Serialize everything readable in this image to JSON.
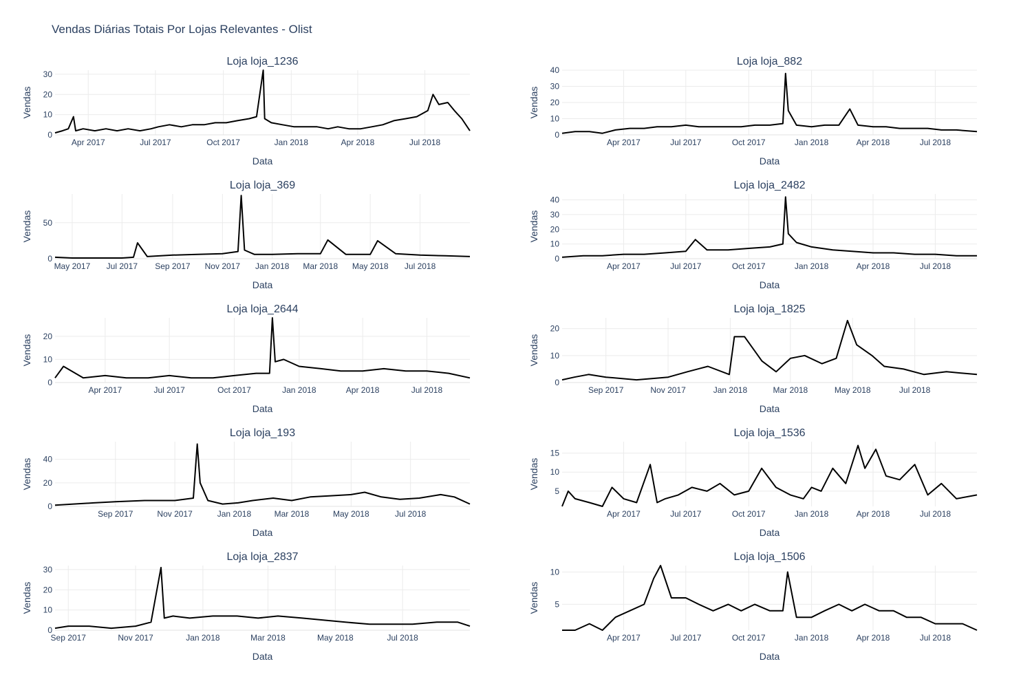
{
  "title": "Vendas Diárias Totais Por Lojas Relevantes - Olist",
  "colors": {
    "line": "#000000",
    "grid": "#ebebeb",
    "text": "#2a3f5f"
  },
  "chart_data": [
    {
      "type": "line",
      "title": "Loja loja_1236",
      "xlabel": "Data",
      "ylabel": "Vendas",
      "xlim": [
        "2017-02-15",
        "2018-08-31"
      ],
      "ylim": [
        0,
        32
      ],
      "xticks": [
        "2017-04-01",
        "2017-07-01",
        "2017-10-01",
        "2018-01-01",
        "2018-04-01",
        "2018-07-01"
      ],
      "xticklabels": [
        "Apr 2017",
        "Jul 2017",
        "Oct 2017",
        "Jan 2018",
        "Apr 2018",
        "Jul 2018"
      ],
      "yticks": [
        0,
        10,
        20,
        30
      ],
      "series": [
        {
          "x": [
            "2017-02-15",
            "2017-02-25",
            "2017-03-05",
            "2017-03-12",
            "2017-03-15",
            "2017-03-25",
            "2017-04-10",
            "2017-04-25",
            "2017-05-10",
            "2017-05-25",
            "2017-06-10",
            "2017-06-25",
            "2017-07-05",
            "2017-07-20",
            "2017-08-05",
            "2017-08-20",
            "2017-09-05",
            "2017-09-20",
            "2017-10-05",
            "2017-10-20",
            "2017-11-05",
            "2017-11-15",
            "2017-11-24",
            "2017-11-26",
            "2017-12-05",
            "2017-12-20",
            "2018-01-05",
            "2018-01-20",
            "2018-02-05",
            "2018-02-20",
            "2018-03-05",
            "2018-03-20",
            "2018-04-05",
            "2018-04-20",
            "2018-05-05",
            "2018-05-20",
            "2018-06-05",
            "2018-06-20",
            "2018-07-05",
            "2018-07-12",
            "2018-07-20",
            "2018-08-01",
            "2018-08-10",
            "2018-08-20",
            "2018-08-31"
          ],
          "y": [
            1,
            2,
            3,
            9,
            2,
            3,
            2,
            3,
            2,
            3,
            2,
            3,
            4,
            5,
            4,
            5,
            5,
            6,
            6,
            7,
            8,
            9,
            32,
            8,
            6,
            5,
            4,
            4,
            4,
            3,
            4,
            3,
            3,
            4,
            5,
            7,
            8,
            9,
            12,
            20,
            15,
            16,
            12,
            8,
            2
          ]
        }
      ]
    },
    {
      "type": "line",
      "title": "Loja loja_882",
      "xlabel": "Data",
      "ylabel": "Vendas",
      "xlim": [
        "2017-01-01",
        "2018-08-31"
      ],
      "ylim": [
        0,
        40
      ],
      "xticks": [
        "2017-04-01",
        "2017-07-01",
        "2017-10-01",
        "2018-01-01",
        "2018-04-01",
        "2018-07-01"
      ],
      "xticklabels": [
        "Apr 2017",
        "Jul 2017",
        "Oct 2017",
        "Jan 2018",
        "Apr 2018",
        "Jul 2018"
      ],
      "yticks": [
        0,
        10,
        20,
        30,
        40
      ],
      "series": [
        {
          "x": [
            "2017-01-01",
            "2017-01-20",
            "2017-02-10",
            "2017-03-01",
            "2017-03-20",
            "2017-04-10",
            "2017-05-01",
            "2017-05-20",
            "2017-06-10",
            "2017-07-01",
            "2017-07-20",
            "2017-08-10",
            "2017-09-01",
            "2017-09-20",
            "2017-10-10",
            "2017-11-01",
            "2017-11-20",
            "2017-11-24",
            "2017-11-28",
            "2017-12-10",
            "2018-01-01",
            "2018-01-20",
            "2018-02-10",
            "2018-02-26",
            "2018-03-10",
            "2018-04-01",
            "2018-04-20",
            "2018-05-10",
            "2018-06-01",
            "2018-06-20",
            "2018-07-10",
            "2018-08-01",
            "2018-08-31"
          ],
          "y": [
            1,
            2,
            2,
            1,
            3,
            4,
            4,
            5,
            5,
            6,
            5,
            5,
            5,
            5,
            6,
            6,
            7,
            38,
            15,
            6,
            5,
            6,
            6,
            16,
            6,
            5,
            5,
            4,
            4,
            4,
            3,
            3,
            2
          ]
        }
      ]
    },
    {
      "type": "line",
      "title": "Loja loja_369",
      "xlabel": "Data",
      "ylabel": "Vendas",
      "xlim": [
        "2017-04-10",
        "2018-08-31"
      ],
      "ylim": [
        0,
        90
      ],
      "xticks": [
        "2017-05-01",
        "2017-07-01",
        "2017-09-01",
        "2017-11-01",
        "2018-01-01",
        "2018-03-01",
        "2018-05-01",
        "2018-07-01"
      ],
      "xticklabels": [
        "May 2017",
        "Jul 2017",
        "Sep 2017",
        "Nov 2017",
        "Jan 2018",
        "Mar 2018",
        "May 2018",
        "Jul 2018"
      ],
      "yticks": [
        0,
        50
      ],
      "series": [
        {
          "x": [
            "2017-04-10",
            "2017-05-01",
            "2017-06-01",
            "2017-07-01",
            "2017-07-15",
            "2017-07-20",
            "2017-08-01",
            "2017-09-01",
            "2017-10-01",
            "2017-11-01",
            "2017-11-20",
            "2017-11-24",
            "2017-11-28",
            "2017-12-10",
            "2018-01-01",
            "2018-02-01",
            "2018-03-01",
            "2018-03-10",
            "2018-04-01",
            "2018-05-01",
            "2018-05-10",
            "2018-06-01",
            "2018-07-01",
            "2018-08-01",
            "2018-08-31"
          ],
          "y": [
            2,
            1,
            1,
            1,
            2,
            22,
            3,
            5,
            6,
            7,
            10,
            88,
            12,
            6,
            6,
            7,
            7,
            26,
            6,
            6,
            25,
            7,
            5,
            4,
            3
          ]
        }
      ]
    },
    {
      "type": "line",
      "title": "Loja loja_2482",
      "xlabel": "Data",
      "ylabel": "Vendas",
      "xlim": [
        "2017-01-01",
        "2018-08-31"
      ],
      "ylim": [
        0,
        44
      ],
      "xticks": [
        "2017-04-01",
        "2017-07-01",
        "2017-10-01",
        "2018-01-01",
        "2018-04-01",
        "2018-07-01"
      ],
      "xticklabels": [
        "Apr 2017",
        "Jul 2017",
        "Oct 2017",
        "Jan 2018",
        "Apr 2018",
        "Jul 2018"
      ],
      "yticks": [
        0,
        10,
        20,
        30,
        40
      ],
      "series": [
        {
          "x": [
            "2017-01-01",
            "2017-02-01",
            "2017-03-01",
            "2017-04-01",
            "2017-05-01",
            "2017-06-01",
            "2017-07-01",
            "2017-07-15",
            "2017-08-01",
            "2017-09-01",
            "2017-10-01",
            "2017-11-01",
            "2017-11-20",
            "2017-11-24",
            "2017-11-28",
            "2017-12-10",
            "2018-01-01",
            "2018-02-01",
            "2018-03-01",
            "2018-04-01",
            "2018-05-01",
            "2018-06-01",
            "2018-07-01",
            "2018-08-01",
            "2018-08-31"
          ],
          "y": [
            1,
            2,
            2,
            3,
            3,
            4,
            5,
            13,
            6,
            6,
            7,
            8,
            10,
            42,
            17,
            11,
            8,
            6,
            5,
            4,
            4,
            3,
            3,
            2,
            2
          ]
        }
      ]
    },
    {
      "type": "line",
      "title": "Loja loja_2644",
      "xlabel": "Data",
      "ylabel": "Vendas",
      "xlim": [
        "2017-01-20",
        "2018-08-31"
      ],
      "ylim": [
        0,
        28
      ],
      "xticks": [
        "2017-04-01",
        "2017-07-01",
        "2017-10-01",
        "2018-01-01",
        "2018-04-01",
        "2018-07-01"
      ],
      "xticklabels": [
        "Apr 2017",
        "Jul 2017",
        "Oct 2017",
        "Jan 2018",
        "Apr 2018",
        "Jul 2018"
      ],
      "yticks": [
        0,
        10,
        20
      ],
      "series": [
        {
          "x": [
            "2017-01-20",
            "2017-02-01",
            "2017-03-01",
            "2017-04-01",
            "2017-05-01",
            "2017-06-01",
            "2017-07-01",
            "2017-08-01",
            "2017-09-01",
            "2017-10-01",
            "2017-11-01",
            "2017-11-20",
            "2017-11-24",
            "2017-11-28",
            "2017-12-10",
            "2018-01-01",
            "2018-02-01",
            "2018-03-01",
            "2018-04-01",
            "2018-05-01",
            "2018-06-01",
            "2018-07-01",
            "2018-08-01",
            "2018-08-31"
          ],
          "y": [
            2,
            7,
            2,
            3,
            2,
            2,
            3,
            2,
            2,
            3,
            4,
            4,
            28,
            9,
            10,
            7,
            6,
            5,
            5,
            6,
            5,
            5,
            4,
            2
          ]
        }
      ]
    },
    {
      "type": "line",
      "title": "Loja loja_1825",
      "xlabel": "Data",
      "ylabel": "Vendas",
      "xlim": [
        "2017-07-20",
        "2018-08-31"
      ],
      "ylim": [
        0,
        24
      ],
      "xticks": [
        "2017-09-01",
        "2017-11-01",
        "2018-01-01",
        "2018-03-01",
        "2018-05-01",
        "2018-07-01"
      ],
      "xticklabels": [
        "Sep 2017",
        "Nov 2017",
        "Jan 2018",
        "Mar 2018",
        "May 2018",
        "Jul 2018"
      ],
      "yticks": [
        0,
        10,
        20
      ],
      "series": [
        {
          "x": [
            "2017-07-20",
            "2017-08-01",
            "2017-08-15",
            "2017-09-01",
            "2017-10-01",
            "2017-11-01",
            "2017-11-20",
            "2017-12-10",
            "2017-12-31",
            "2018-01-05",
            "2018-01-15",
            "2018-02-01",
            "2018-02-15",
            "2018-03-01",
            "2018-03-15",
            "2018-04-01",
            "2018-04-15",
            "2018-04-26",
            "2018-05-05",
            "2018-05-20",
            "2018-06-01",
            "2018-06-20",
            "2018-07-10",
            "2018-08-01",
            "2018-08-31"
          ],
          "y": [
            1,
            2,
            3,
            2,
            1,
            2,
            4,
            6,
            3,
            17,
            17,
            8,
            4,
            9,
            10,
            7,
            9,
            23,
            14,
            10,
            6,
            5,
            3,
            4,
            3
          ]
        }
      ]
    },
    {
      "type": "line",
      "title": "Loja loja_193",
      "xlabel": "Data",
      "ylabel": "Vendas",
      "xlim": [
        "2017-07-01",
        "2018-08-31"
      ],
      "ylim": [
        0,
        55
      ],
      "xticks": [
        "2017-09-01",
        "2017-11-01",
        "2018-01-01",
        "2018-03-01",
        "2018-05-01",
        "2018-07-01"
      ],
      "xticklabels": [
        "Sep 2017",
        "Nov 2017",
        "Jan 2018",
        "Mar 2018",
        "May 2018",
        "Jul 2018"
      ],
      "yticks": [
        0,
        20,
        40
      ],
      "series": [
        {
          "x": [
            "2017-07-01",
            "2017-07-20",
            "2017-08-10",
            "2017-09-01",
            "2017-10-01",
            "2017-11-01",
            "2017-11-20",
            "2017-11-24",
            "2017-11-27",
            "2017-12-05",
            "2017-12-20",
            "2018-01-05",
            "2018-01-20",
            "2018-02-10",
            "2018-03-01",
            "2018-03-20",
            "2018-04-10",
            "2018-05-01",
            "2018-05-15",
            "2018-06-01",
            "2018-06-20",
            "2018-07-10",
            "2018-08-01",
            "2018-08-15",
            "2018-08-31"
          ],
          "y": [
            1,
            2,
            3,
            4,
            5,
            5,
            7,
            53,
            20,
            5,
            2,
            3,
            5,
            7,
            5,
            8,
            9,
            10,
            12,
            8,
            6,
            7,
            10,
            8,
            2
          ]
        }
      ]
    },
    {
      "type": "line",
      "title": "Loja loja_1536",
      "xlabel": "Data",
      "ylabel": "Vendas",
      "xlim": [
        "2017-01-01",
        "2018-08-31"
      ],
      "ylim": [
        1,
        18
      ],
      "xticks": [
        "2017-04-01",
        "2017-07-01",
        "2017-10-01",
        "2018-01-01",
        "2018-04-01",
        "2018-07-01"
      ],
      "xticklabels": [
        "Apr 2017",
        "Jul 2017",
        "Oct 2017",
        "Jan 2018",
        "Apr 2018",
        "Jul 2018"
      ],
      "yticks": [
        5,
        10,
        15
      ],
      "series": [
        {
          "x": [
            "2017-01-01",
            "2017-01-10",
            "2017-01-20",
            "2017-02-10",
            "2017-03-01",
            "2017-03-15",
            "2017-04-01",
            "2017-04-20",
            "2017-05-10",
            "2017-05-20",
            "2017-06-01",
            "2017-06-20",
            "2017-07-10",
            "2017-08-01",
            "2017-08-20",
            "2017-09-10",
            "2017-10-01",
            "2017-10-20",
            "2017-11-10",
            "2017-12-01",
            "2017-12-20",
            "2018-01-01",
            "2018-01-15",
            "2018-02-01",
            "2018-02-20",
            "2018-03-10",
            "2018-03-20",
            "2018-04-05",
            "2018-04-20",
            "2018-05-10",
            "2018-06-01",
            "2018-06-20",
            "2018-07-10",
            "2018-08-01",
            "2018-08-31"
          ],
          "y": [
            1,
            5,
            3,
            2,
            1,
            6,
            3,
            2,
            12,
            2,
            3,
            4,
            6,
            5,
            7,
            4,
            5,
            11,
            6,
            4,
            3,
            6,
            5,
            11,
            7,
            17,
            11,
            16,
            9,
            8,
            12,
            4,
            7,
            3,
            4
          ]
        }
      ]
    },
    {
      "type": "line",
      "title": "Loja loja_2837",
      "xlabel": "Data",
      "ylabel": "Vendas",
      "xlim": [
        "2017-08-20",
        "2018-08-31"
      ],
      "ylim": [
        0,
        32
      ],
      "xticks": [
        "2017-09-01",
        "2017-11-01",
        "2018-01-01",
        "2018-03-01",
        "2018-05-01",
        "2018-07-01"
      ],
      "xticklabels": [
        "Sep 2017",
        "Nov 2017",
        "Jan 2018",
        "Mar 2018",
        "May 2018",
        "Jul 2018"
      ],
      "yticks": [
        0,
        10,
        20,
        30
      ],
      "series": [
        {
          "x": [
            "2017-08-20",
            "2017-09-01",
            "2017-09-20",
            "2017-10-10",
            "2017-11-01",
            "2017-11-15",
            "2017-11-24",
            "2017-11-27",
            "2017-12-05",
            "2017-12-20",
            "2018-01-10",
            "2018-02-01",
            "2018-02-20",
            "2018-03-10",
            "2018-04-01",
            "2018-04-20",
            "2018-05-10",
            "2018-06-01",
            "2018-06-20",
            "2018-07-10",
            "2018-08-01",
            "2018-08-20",
            "2018-08-31"
          ],
          "y": [
            1,
            2,
            2,
            1,
            2,
            4,
            31,
            6,
            7,
            6,
            7,
            7,
            6,
            7,
            6,
            5,
            4,
            3,
            3,
            3,
            4,
            4,
            2
          ]
        }
      ]
    },
    {
      "type": "line",
      "title": "Loja loja_1506",
      "xlabel": "Data",
      "ylabel": "Vendas",
      "xlim": [
        "2017-01-01",
        "2018-08-31"
      ],
      "ylim": [
        1,
        11
      ],
      "xticks": [
        "2017-04-01",
        "2017-07-01",
        "2017-10-01",
        "2018-01-01",
        "2018-04-01",
        "2018-07-01"
      ],
      "xticklabels": [
        "Apr 2017",
        "Jul 2017",
        "Oct 2017",
        "Jan 2018",
        "Apr 2018",
        "Jul 2018"
      ],
      "yticks": [
        5,
        10
      ],
      "series": [
        {
          "x": [
            "2017-01-01",
            "2017-01-20",
            "2017-02-10",
            "2017-03-01",
            "2017-03-20",
            "2017-04-10",
            "2017-05-01",
            "2017-05-15",
            "2017-05-25",
            "2017-06-10",
            "2017-07-01",
            "2017-07-20",
            "2017-08-10",
            "2017-09-01",
            "2017-09-20",
            "2017-10-10",
            "2017-11-01",
            "2017-11-20",
            "2017-11-27",
            "2017-12-10",
            "2018-01-01",
            "2018-01-20",
            "2018-02-10",
            "2018-03-01",
            "2018-03-20",
            "2018-04-10",
            "2018-05-01",
            "2018-05-20",
            "2018-06-10",
            "2018-07-01",
            "2018-07-20",
            "2018-08-10",
            "2018-08-31"
          ],
          "y": [
            1,
            1,
            2,
            1,
            3,
            4,
            5,
            9,
            11,
            6,
            6,
            5,
            4,
            5,
            4,
            5,
            4,
            4,
            10,
            3,
            3,
            4,
            5,
            4,
            5,
            4,
            4,
            3,
            3,
            2,
            2,
            2,
            1
          ]
        }
      ]
    }
  ]
}
